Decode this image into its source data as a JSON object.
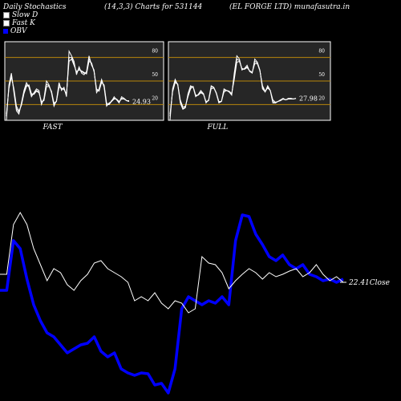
{
  "header": {
    "left": "Daily Stochastics",
    "middle": "(14,3,3) Charts for 531144",
    "right": "(EL FORGE LTD) munafasutra.in"
  },
  "legend": [
    {
      "label": "Slow  D",
      "swatch": "slow"
    },
    {
      "label": "Fast K",
      "swatch": "fast"
    },
    {
      "label": "OBV",
      "swatch": "obv"
    }
  ],
  "colors": {
    "background": "#000000",
    "panel_bg": "#262626",
    "level_line": "#b8860b",
    "stoch_line": "#ffffff",
    "price_line": "#ffffff",
    "obv_line": "#0000ff"
  },
  "chart_data": [
    {
      "type": "line",
      "panel": "FAST",
      "xlabel": "FAST",
      "ylim": [
        0,
        100
      ],
      "levels": [
        20,
        50,
        80
      ],
      "level_labels": [
        "80",
        "50",
        "20"
      ],
      "last_value_label": "24.93",
      "series": [
        {
          "values": [
            0,
            45,
            60,
            35,
            12,
            8,
            22,
            38,
            48,
            42,
            30,
            35,
            40,
            38,
            20,
            28,
            50,
            45,
            35,
            18,
            25,
            48,
            38,
            42,
            30,
            88,
            82,
            75,
            58,
            68,
            60,
            58,
            62,
            82,
            70,
            64,
            35,
            40,
            52,
            42,
            18,
            22,
            24,
            30,
            26,
            22,
            30,
            28,
            25,
            24
          ]
        },
        {
          "values": [
            5,
            42,
            58,
            38,
            15,
            10,
            20,
            36,
            45,
            44,
            32,
            34,
            38,
            36,
            22,
            26,
            46,
            44,
            36,
            20,
            24,
            45,
            40,
            40,
            32,
            80,
            80,
            72,
            60,
            66,
            62,
            60,
            60,
            78,
            72,
            62,
            38,
            38,
            50,
            44,
            20,
            20,
            25,
            28,
            27,
            23,
            28,
            27,
            25,
            25
          ]
        },
        {
          "values": [
            8,
            40,
            55,
            40,
            18,
            12,
            19,
            34,
            43,
            45,
            34,
            33,
            37,
            35,
            24,
            25,
            43,
            43,
            37,
            22,
            24,
            42,
            41,
            39,
            34,
            75,
            78,
            70,
            62,
            64,
            63,
            61,
            59,
            75,
            73,
            62,
            40,
            37,
            48,
            45,
            22,
            20,
            24,
            27,
            27,
            24,
            27,
            27,
            25,
            24
          ]
        }
      ]
    },
    {
      "type": "line",
      "panel": "FULL",
      "xlabel": "FULL",
      "ylim": [
        0,
        100
      ],
      "levels": [
        20,
        50,
        80
      ],
      "level_labels": [
        "80",
        "50",
        "20"
      ],
      "last_value_label": "27.98",
      "series": [
        {
          "values": [
            0,
            40,
            52,
            45,
            22,
            14,
            16,
            34,
            44,
            42,
            30,
            33,
            38,
            34,
            22,
            26,
            44,
            42,
            34,
            22,
            24,
            40,
            38,
            36,
            32,
            60,
            82,
            78,
            64,
            66,
            70,
            62,
            60,
            78,
            74,
            64,
            40,
            36,
            44,
            38,
            22,
            22,
            24,
            26,
            28,
            26,
            28,
            28,
            27,
            28
          ]
        },
        {
          "values": [
            5,
            38,
            50,
            46,
            24,
            15,
            17,
            32,
            42,
            43,
            31,
            32,
            36,
            34,
            23,
            25,
            42,
            42,
            35,
            23,
            24,
            38,
            38,
            37,
            33,
            56,
            78,
            76,
            65,
            65,
            68,
            63,
            61,
            75,
            73,
            63,
            42,
            36,
            42,
            38,
            24,
            22,
            24,
            26,
            27,
            26,
            27,
            28,
            27,
            28
          ]
        },
        {
          "values": [
            8,
            36,
            48,
            46,
            26,
            17,
            18,
            30,
            40,
            43,
            32,
            32,
            35,
            33,
            24,
            25,
            40,
            41,
            35,
            24,
            24,
            36,
            38,
            37,
            34,
            52,
            74,
            75,
            66,
            65,
            67,
            63,
            61,
            72,
            72,
            63,
            44,
            37,
            41,
            38,
            26,
            23,
            24,
            25,
            27,
            26,
            27,
            27,
            27,
            28
          ]
        }
      ]
    },
    {
      "type": "line",
      "panel": "PRICE",
      "last_value_label": "22.41",
      "last_label": "Close",
      "series": [
        {
          "name": "Close",
          "values": [
            342,
            342,
            280,
            265,
            280,
            310,
            330,
            350,
            335,
            340,
            355,
            362,
            350,
            342,
            328,
            325,
            335,
            340,
            345,
            352,
            375,
            370,
            375,
            365,
            378,
            385,
            375,
            378,
            390,
            385,
            320,
            328,
            330,
            340,
            360,
            350,
            342,
            335,
            340,
            348,
            340,
            345,
            342,
            338,
            335,
            345,
            340,
            330,
            342,
            350,
            345,
            352
          ]
        },
        {
          "name": "OBV",
          "values": [
            362,
            362,
            300,
            310,
            348,
            380,
            400,
            415,
            420,
            430,
            440,
            435,
            430,
            428,
            420,
            438,
            445,
            440,
            460,
            465,
            468,
            465,
            466,
            480,
            478,
            490,
            460,
            385,
            370,
            375,
            380,
            375,
            378,
            370,
            380,
            300,
            268,
            270,
            292,
            305,
            320,
            325,
            318,
            330,
            335,
            330,
            342,
            345,
            350,
            348,
            352,
            348
          ]
        }
      ]
    }
  ]
}
